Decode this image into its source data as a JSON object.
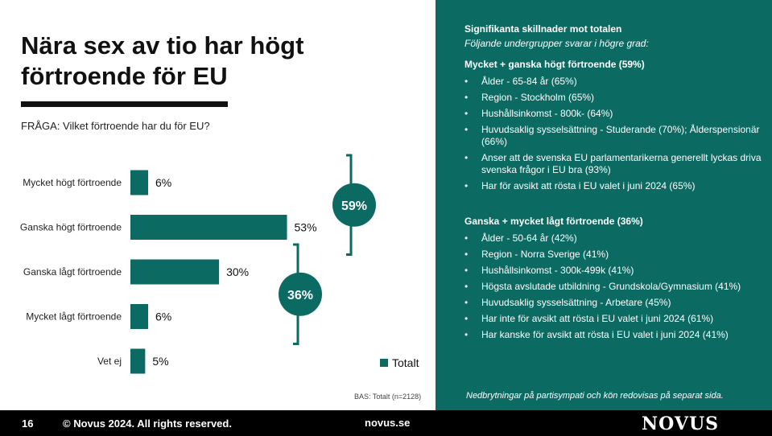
{
  "title": "Nära sex av tio har högt förtroende för EU",
  "question": "FRÅGA: Vilket förtroende har du för EU?",
  "legend_label": "Totalt",
  "base_note": "BAS: Totalt (n=2128)",
  "colors": {
    "accent": "#0b6b63",
    "dark": "#000000"
  },
  "chart_data": {
    "type": "bar",
    "orientation": "horizontal",
    "categories": [
      "Mycket högt förtroende",
      "Ganska högt förtroende",
      "Ganska lågt förtroende",
      "Mycket lågt förtroende",
      "Vet ej"
    ],
    "series": [
      {
        "name": "Totalt",
        "values": [
          6,
          53,
          30,
          6,
          5
        ]
      }
    ],
    "value_labels": [
      "6%",
      "53%",
      "30%",
      "6%",
      "5%"
    ],
    "xlim": [
      0,
      100
    ],
    "grid": false,
    "legend": "bottom-right",
    "group_totals": [
      {
        "label": "59%",
        "categories": [
          "Mycket högt förtroende",
          "Ganska högt förtroende"
        ]
      },
      {
        "label": "36%",
        "categories": [
          "Ganska lågt förtroende",
          "Mycket lågt förtroende"
        ]
      }
    ]
  },
  "panel": {
    "heading": "Signifikanta skillnader mot totalen",
    "subheading": "Följande undergrupper svarar i högre grad:",
    "groups": [
      {
        "title": "Mycket + ganska högt förtroende (59%)",
        "items": [
          "Ålder - 65-84 år (65%)",
          "Region - Stockholm (65%)",
          "Hushållsinkomst - 800k- (64%)",
          "Huvudsaklig sysselsättning - Studerande (70%); Ålderspensionär (66%)",
          "Anser att de svenska EU parlamentarikerna generellt lyckas driva svenska frågor i EU bra (93%)",
          "Har för avsikt att rösta i EU valet i juni 2024 (65%)"
        ]
      },
      {
        "title": "Ganska + mycket lågt förtroende (36%)",
        "items": [
          "Ålder - 50-64 år (42%)",
          "Region - Norra Sverige (41%)",
          "Hushållsinkomst - 300k-499k (41%)",
          "Högsta avslutade utbildning - Grundskola/Gymnasium (41%)",
          "Huvudsaklig sysselsättning - Arbetare (45%)",
          "Har inte för avsikt att rösta i EU valet i juni 2024 (61%)",
          "Har kanske för avsikt att rösta i EU valet i juni 2024 (41%)"
        ]
      }
    ],
    "footnote": "Nedbrytningar på partisympati och kön redovisas på separat sida."
  },
  "footer": {
    "page_number": "16",
    "copyright": "© Novus 2024. All rights reserved.",
    "website": "novus.se",
    "logo_text": "NOVUS"
  }
}
